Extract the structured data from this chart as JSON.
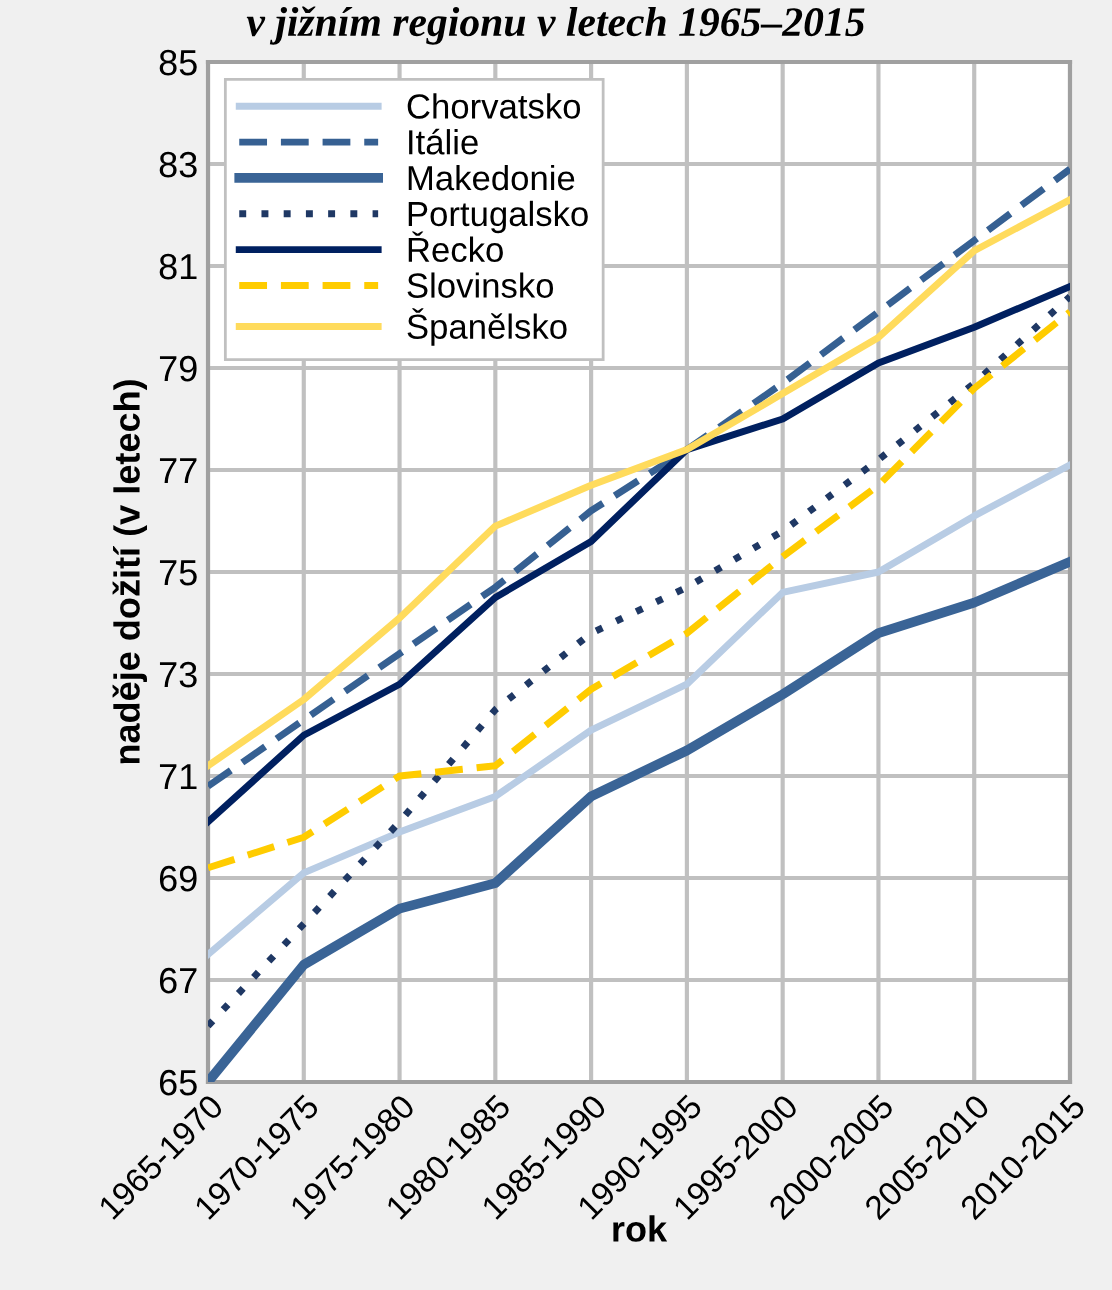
{
  "chart_data": {
    "type": "line",
    "title": "v jižním regionu v letech 1965–2015",
    "xlabel": "rok",
    "ylabel": "naděje dožití (v letech)",
    "categories": [
      "1965-1970",
      "1970-1975",
      "1975-1980",
      "1980-1985",
      "1985-1990",
      "1990-1995",
      "1995-2000",
      "2000-2005",
      "2005-2010",
      "2010-2015"
    ],
    "series": [
      {
        "name": "Chorvatsko",
        "color": "#b8cce4",
        "line_style": "solid",
        "values": [
          67.5,
          69.1,
          69.9,
          70.6,
          71.9,
          72.8,
          74.6,
          75.0,
          76.1,
          77.1
        ]
      },
      {
        "name": "Itálie",
        "color": "#366092",
        "line_style": "dashed",
        "values": [
          70.8,
          72.1,
          73.4,
          74.7,
          76.2,
          77.4,
          78.7,
          80.1,
          81.5,
          82.9
        ]
      },
      {
        "name": "Makedonie",
        "color": "#3a6496",
        "line_style": "solid",
        "values": [
          65.0,
          67.3,
          68.4,
          68.9,
          70.6,
          71.5,
          72.6,
          73.8,
          74.4,
          75.2
        ]
      },
      {
        "name": "Portugalsko",
        "color": "#1f3864",
        "line_style": "dotted",
        "values": [
          66.1,
          68.1,
          70.1,
          72.3,
          73.8,
          74.7,
          75.8,
          77.2,
          78.7,
          80.4
        ]
      },
      {
        "name": "Řecko",
        "color": "#002060",
        "line_style": "solid",
        "values": [
          70.1,
          71.8,
          72.8,
          74.5,
          75.6,
          77.4,
          78.0,
          79.1,
          79.8,
          80.6
        ]
      },
      {
        "name": "Slovinsko",
        "color": "#ffcc00",
        "line_style": "dashed",
        "values": [
          69.2,
          69.8,
          71.0,
          71.2,
          72.7,
          73.8,
          75.3,
          76.7,
          78.6,
          80.1
        ]
      },
      {
        "name": "Španělsko",
        "color": "#ffdb5c",
        "line_style": "solid",
        "values": [
          71.2,
          72.5,
          74.1,
          75.9,
          76.7,
          77.4,
          78.5,
          79.6,
          81.3,
          82.3
        ]
      }
    ],
    "ylim": [
      65,
      85
    ],
    "yticks": [
      65,
      67,
      69,
      71,
      73,
      75,
      77,
      79,
      81,
      83,
      85
    ],
    "grid": true,
    "legend": "top left",
    "marker": "none"
  }
}
